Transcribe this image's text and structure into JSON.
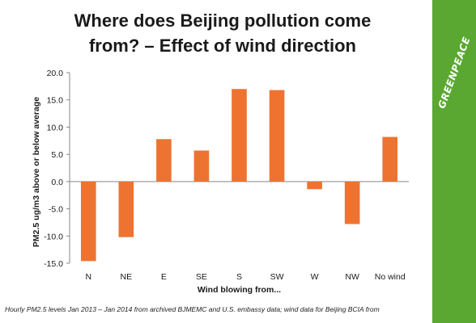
{
  "slide": {
    "title_line1": "Where does Beijing pollution come",
    "title_line2": "from? – Effect of wind direction",
    "brand": "GREENPEACE",
    "brand_color": "#5aa832",
    "source_note": "Hourly PM2.5 levels Jan 2013 – Jan 2014 from archived BJMEMC and U.S. embassy data; wind data for Beijing BCIA from"
  },
  "chart_data": {
    "type": "bar",
    "categories": [
      "N",
      "NE",
      "E",
      "SE",
      "S",
      "SW",
      "W",
      "NW",
      "No wind"
    ],
    "values": [
      -14.6,
      -10.2,
      7.8,
      5.7,
      17.0,
      16.8,
      -1.4,
      -7.8,
      8.2
    ],
    "title": "Where does Beijing pollution come from? – Effect of wind direction",
    "xlabel": "Wind blowing from...",
    "ylabel": "PM2.5 ug/m3 above or below average",
    "ylim": [
      -15,
      20
    ],
    "yticks": [
      "-15.0",
      "-10.0",
      "-5.0",
      "0.0",
      "5.0",
      "10.0",
      "15.0",
      "20.0"
    ],
    "bar_color": "#ee7330",
    "grid": false,
    "legend": "none"
  }
}
